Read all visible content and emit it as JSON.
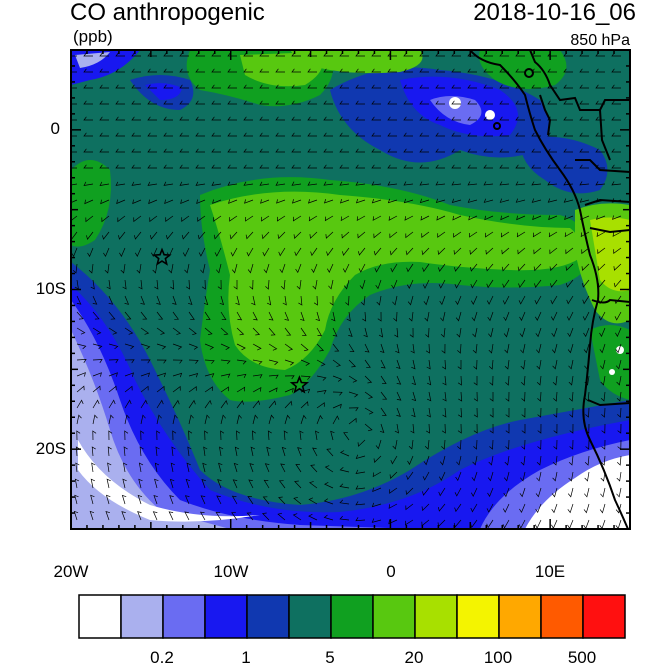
{
  "title": "CO anthropogenic",
  "timestamp": "2018-10-16_06",
  "units": "(ppb)",
  "level": "850 hPa",
  "map": {
    "lon_range": [
      -20,
      15
    ],
    "lat_range": [
      -25,
      5
    ],
    "projection": "cylindrical equidistant",
    "field": "CO anthropogenic concentration with wind barbs",
    "markers": [
      {
        "symbol": "star",
        "lon": -14.3,
        "lat": -8.0
      },
      {
        "symbol": "star",
        "lon": -5.7,
        "lat": -16.0
      }
    ]
  },
  "axes": {
    "y_ticks": [
      {
        "lat": 0,
        "label": "0"
      },
      {
        "lat": -10,
        "label": "10S"
      },
      {
        "lat": -20,
        "label": "20S"
      }
    ],
    "x_ticks": [
      {
        "lon": -20,
        "label": "20W"
      },
      {
        "lon": -10,
        "label": "10W"
      },
      {
        "lon": 0,
        "label": "0"
      },
      {
        "lon": 10,
        "label": "10E"
      }
    ]
  },
  "colorbar": {
    "colors": [
      "#ffffff",
      "#aab0ee",
      "#6a6cf2",
      "#1818f0",
      "#1038b0",
      "#0e7060",
      "#10a020",
      "#58c810",
      "#a8e000",
      "#f4f400",
      "#ffa800",
      "#ff5a00",
      "#ff1010"
    ],
    "labels": [
      {
        "after_box": 2,
        "text": "0.2"
      },
      {
        "after_box": 4,
        "text": "1"
      },
      {
        "after_box": 6,
        "text": "5"
      },
      {
        "after_box": 8,
        "text": "20"
      },
      {
        "after_box": 10,
        "text": "100"
      },
      {
        "after_box": 12,
        "text": "500"
      }
    ]
  }
}
